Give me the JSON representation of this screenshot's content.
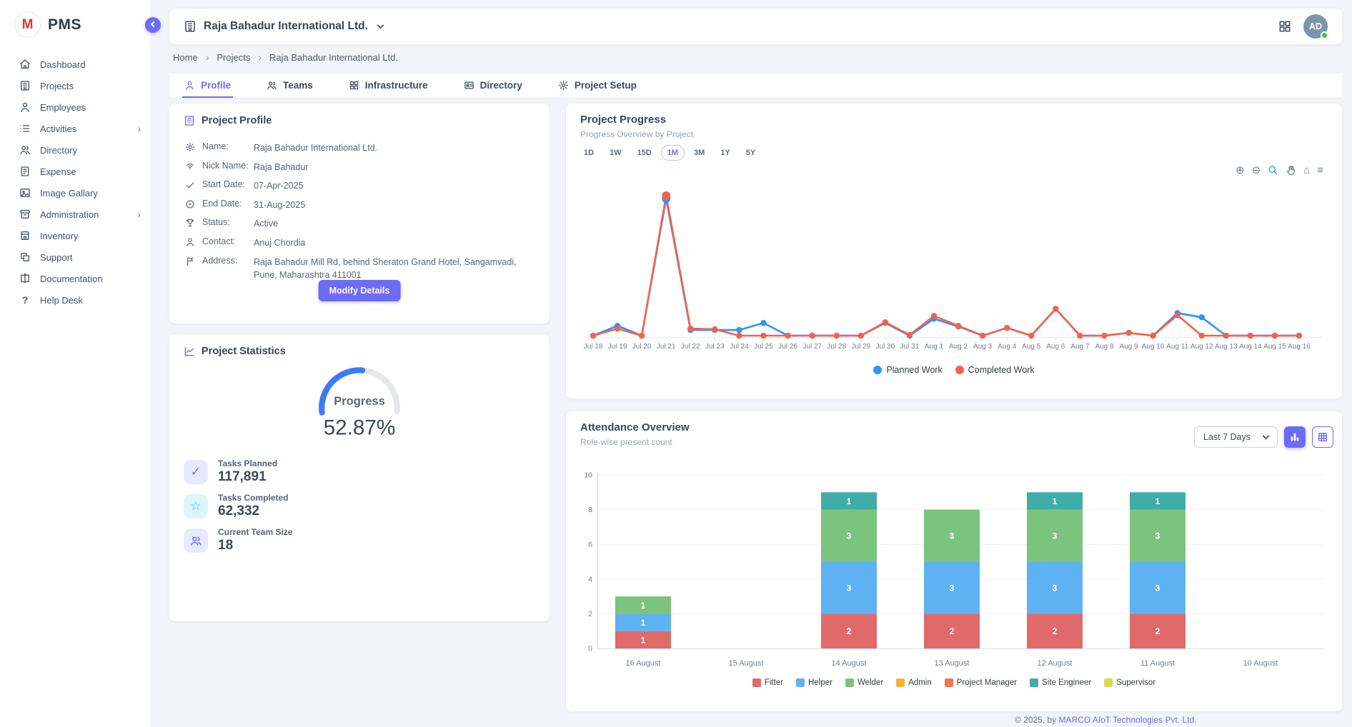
{
  "brand": {
    "name": "PMS",
    "logo_letter": "M"
  },
  "sidebar": {
    "items": [
      {
        "label": "Dashboard",
        "icon": "home-icon"
      },
      {
        "label": "Projects",
        "icon": "building-icon"
      },
      {
        "label": "Employees",
        "icon": "user-icon"
      },
      {
        "label": "Activities",
        "icon": "list-icon",
        "submenu": true
      },
      {
        "label": "Directory",
        "icon": "users-icon"
      },
      {
        "label": "Expense",
        "icon": "receipt-icon"
      },
      {
        "label": "Image Gallary",
        "icon": "image-icon"
      },
      {
        "label": "Administration",
        "icon": "archive-icon",
        "submenu": true
      },
      {
        "label": "Inventory",
        "icon": "store-icon"
      },
      {
        "label": "Support",
        "icon": "copy-icon"
      },
      {
        "label": "Documentation",
        "icon": "book-icon"
      },
      {
        "label": "Help Desk",
        "icon": "help-icon"
      }
    ]
  },
  "header": {
    "company": "Raja Bahadur International Ltd.",
    "avatar_initials": "AD",
    "status": "online"
  },
  "breadcrumb": {
    "items": [
      "Home",
      "Projects",
      "Raja Bahadur International Ltd."
    ]
  },
  "tabs": {
    "items": [
      {
        "label": "Profile",
        "active": true
      },
      {
        "label": "Teams",
        "active": false
      },
      {
        "label": "Infrastructure",
        "active": false
      },
      {
        "label": "Directory",
        "active": false
      },
      {
        "label": "Project Setup",
        "active": false
      }
    ]
  },
  "profile": {
    "title": "Project Profile",
    "fields": [
      {
        "label": "Name:",
        "value": "Raja Bahadur International Ltd."
      },
      {
        "label": "Nick Name:",
        "value": "Raja Bahadur"
      },
      {
        "label": "Start Date:",
        "value": "07-Apr-2025"
      },
      {
        "label": "End Date:",
        "value": "31-Aug-2025"
      },
      {
        "label": "Status:",
        "value": "Active"
      },
      {
        "label": "Contact:",
        "value": "Anuj Chordia"
      },
      {
        "label": "Address:",
        "value": "Raja Bahadur Mill Rd, behind Sheraton Grand Hotel, Sangamvadi, Pune, Maharashtra 411001"
      }
    ],
    "button": "Modify Details"
  },
  "statistics": {
    "title": "Project Statistics",
    "gauge": {
      "label": "Progress",
      "value": "52.87%",
      "percent": 52.87,
      "color": "#3d7bf4",
      "track": "#e5e7ea"
    },
    "stats": [
      {
        "label": "Tasks Planned",
        "value": "117,891"
      },
      {
        "label": "Tasks Completed",
        "value": "62,332"
      },
      {
        "label": "Current Team Size",
        "value": "18"
      }
    ]
  },
  "progress_chart": {
    "title": "Project Progress",
    "subtitle": "Progress Overview by Project",
    "ranges": [
      "1D",
      "1W",
      "15D",
      "1M",
      "3M",
      "1Y",
      "5Y"
    ],
    "active_range": "1M"
  },
  "attendance": {
    "title": "Attendance Overview",
    "subtitle": "Role-wise present count",
    "range_selector": "Last 7 Days"
  },
  "footer": {
    "prefix": "© 2025, by ",
    "company": "MARCO AIoT Technologies Pvt. Ltd."
  },
  "chart_data": [
    {
      "id": "project-progress",
      "type": "line",
      "x": [
        "Jul 18",
        "Jul 19",
        "Jul 20",
        "Jul 21",
        "Jul 22",
        "Jul 23",
        "Jul 24",
        "Jul 25",
        "Jul 26",
        "Jul 27",
        "Jul 28",
        "Jul 29",
        "Jul 30",
        "Jul 31",
        "Aug 1",
        "Aug 2",
        "Aug 3",
        "Aug 4",
        "Aug 5",
        "Aug 6",
        "Aug 7",
        "Aug 8",
        "Aug 9",
        "Aug 10",
        "Aug 11",
        "Aug 12",
        "Aug 13",
        "Aug 14",
        "Aug 15",
        "Aug 16"
      ],
      "series": [
        {
          "name": "Planned Work",
          "color": "#2e93fa",
          "values": [
            0.1,
            0.8,
            0.1,
            9.8,
            0.5,
            0.5,
            0.5,
            1.0,
            0.1,
            0.1,
            0.1,
            0.1,
            1.0,
            0.1,
            1.3,
            0.75,
            0.1,
            0.65,
            0.1,
            2.0,
            0.1,
            0.1,
            0.3,
            0.1,
            1.7,
            1.4,
            0.1,
            0.1,
            0.1,
            0.1
          ]
        },
        {
          "name": "Completed Work",
          "color": "#f4624d",
          "values": [
            0.1,
            0.6,
            0.1,
            10,
            0.6,
            0.55,
            0.1,
            0.1,
            0.1,
            0.1,
            0.1,
            0.1,
            1.05,
            0.15,
            1.5,
            0.8,
            0.1,
            0.65,
            0.1,
            2.0,
            0.1,
            0.1,
            0.3,
            0.1,
            1.55,
            0.1,
            0.1,
            0.1,
            0.1,
            0.1
          ]
        }
      ],
      "ylim": [
        0,
        10.5
      ],
      "legend_position": "bottom",
      "grid": false
    },
    {
      "id": "attendance-overview",
      "type": "bar",
      "stacked": true,
      "categories": [
        "16 August",
        "15 August",
        "14 August",
        "13 August",
        "12 August",
        "11 August",
        "10 August"
      ],
      "series": [
        {
          "name": "Fitter",
          "color": "#e06a6a",
          "values": [
            1,
            0,
            2,
            2,
            2,
            2,
            0
          ]
        },
        {
          "name": "Helper",
          "color": "#5fb2f2",
          "values": [
            1,
            0,
            3,
            3,
            3,
            3,
            0
          ]
        },
        {
          "name": "Welder",
          "color": "#7cc47e",
          "values": [
            1,
            0,
            3,
            3,
            3,
            3,
            0
          ]
        },
        {
          "name": "Admin",
          "color": "#fbb03b",
          "values": [
            0,
            0,
            0,
            0,
            0,
            0,
            0
          ]
        },
        {
          "name": "Project Manager",
          "color": "#f4764f",
          "values": [
            0,
            0,
            0,
            0,
            0,
            0,
            0
          ]
        },
        {
          "name": "Site Engineer",
          "color": "#3fada8",
          "values": [
            0,
            0,
            1,
            0,
            1,
            1,
            0
          ]
        },
        {
          "name": "Supervisor",
          "color": "#d4dd57",
          "values": [
            0,
            0,
            0,
            0,
            0,
            0,
            0
          ]
        }
      ],
      "yticks": [
        0,
        2,
        4,
        6,
        8,
        10
      ],
      "ylim": [
        0,
        10
      ],
      "grid": true,
      "legend_position": "bottom"
    }
  ]
}
